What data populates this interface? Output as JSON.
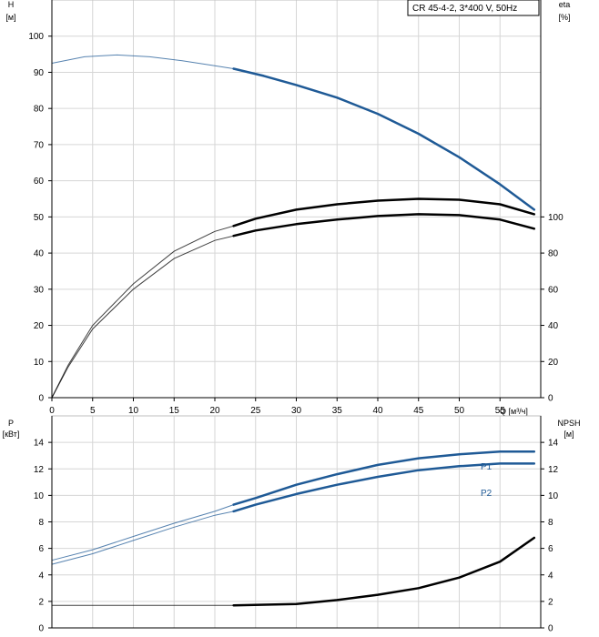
{
  "chart_data": [
    {
      "type": "line",
      "panel": "head-efficiency",
      "legend_text": "CR 45-4-2, 3*400 V, 50Hz",
      "legend_placement": "top-right",
      "grid": true,
      "xlim": [
        0,
        60
      ],
      "xticks": [
        0,
        5,
        10,
        15,
        20,
        25,
        30,
        35,
        40,
        45,
        50,
        55
      ],
      "xlabel": "Q [м³/ч]",
      "left_axis": {
        "label_top": "H",
        "label_unit": "[м]",
        "ylim": [
          0,
          110
        ],
        "ticks": [
          0,
          10,
          20,
          30,
          40,
          50,
          60,
          70,
          80,
          90,
          100
        ]
      },
      "right_axis": {
        "label_top": "eta",
        "label_unit": "[%]",
        "ylim": [
          0,
          220
        ],
        "ticks": [
          0,
          20,
          40,
          60,
          80,
          100
        ]
      },
      "series": [
        {
          "axis": "left",
          "color": "#1f5a96",
          "x": [
            0,
            4,
            8,
            12,
            16,
            20,
            22.3,
            26,
            30,
            35,
            40,
            45,
            50,
            55,
            59.2
          ],
          "y": [
            92.5,
            94.3,
            94.8,
            94.3,
            93.2,
            91.8,
            91,
            89,
            86.5,
            83,
            78.5,
            73,
            66.5,
            59,
            52
          ]
        },
        {
          "axis": "right",
          "color": "#000000",
          "x": [
            0,
            2,
            5,
            10,
            15,
            20,
            22.3,
            25,
            30,
            35,
            40,
            45,
            50,
            55,
            59.2
          ],
          "y": [
            0,
            17,
            38,
            60,
            77,
            87,
            89.5,
            92.5,
            96,
            98.5,
            100.5,
            101.5,
            101,
            98.5,
            93.5
          ]
        },
        {
          "axis": "right",
          "color": "#000000",
          "x": [
            0,
            2,
            5,
            10,
            15,
            20,
            22.3,
            25,
            30,
            35,
            40,
            45,
            50,
            55,
            59.2
          ],
          "y": [
            0,
            18,
            40,
            63,
            81,
            92,
            95,
            99,
            104,
            107,
            109,
            110,
            109.5,
            107,
            101.5
          ]
        }
      ]
    },
    {
      "type": "line",
      "panel": "power-npsh",
      "grid": true,
      "xlim": [
        0,
        60
      ],
      "left_axis": {
        "label_top": "P",
        "label_unit": "[кВт]",
        "ylim": [
          0,
          16
        ],
        "ticks": [
          0,
          2,
          4,
          6,
          8,
          10,
          12,
          14
        ]
      },
      "right_axis": {
        "label_top": "NPSH",
        "label_unit": "[м]",
        "ylim": [
          0,
          16
        ],
        "ticks": [
          0,
          2,
          4,
          6,
          8,
          10,
          12,
          14
        ]
      },
      "series": [
        {
          "name": "P1",
          "axis": "left",
          "color": "#1f5a96",
          "x": [
            0,
            5,
            10,
            15,
            20,
            22.3,
            25,
            30,
            35,
            40,
            45,
            50,
            55,
            59.2
          ],
          "y": [
            5.1,
            5.9,
            6.9,
            7.9,
            8.8,
            9.3,
            9.8,
            10.8,
            11.6,
            12.3,
            12.8,
            13.1,
            13.3,
            13.3
          ]
        },
        {
          "name": "P2",
          "axis": "left",
          "color": "#1f5a96",
          "x": [
            0,
            5,
            10,
            15,
            20,
            22.3,
            25,
            30,
            35,
            40,
            45,
            50,
            55,
            59.2
          ],
          "y": [
            4.8,
            5.6,
            6.6,
            7.6,
            8.5,
            8.8,
            9.3,
            10.1,
            10.8,
            11.4,
            11.9,
            12.2,
            12.4,
            12.4
          ]
        },
        {
          "axis": "right",
          "color": "#000000",
          "x": [
            0,
            10,
            20,
            22.3,
            30,
            35,
            40,
            45,
            50,
            55,
            59.2
          ],
          "y": [
            1.7,
            1.7,
            1.7,
            1.7,
            1.8,
            2.1,
            2.5,
            3.0,
            3.8,
            5.0,
            6.8
          ]
        }
      ]
    }
  ]
}
